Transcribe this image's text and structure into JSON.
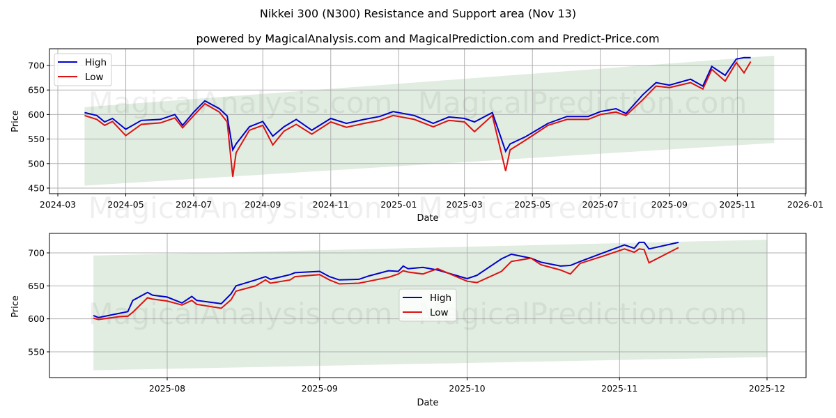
{
  "header": {
    "title": "Nikkei 300 (N300) Resistance and Support area (Nov 13)",
    "subtitle": "powered by MagicalAnalysis.com and MagicalPrediction.com and Predict-Price.com"
  },
  "watermark": {
    "left": "MagicalAnalysis.com",
    "right": "MagicalPrediction.com"
  },
  "colors": {
    "high": "#0000cc",
    "low": "#dd1111",
    "band": "#e1ede1",
    "grid": "#b0b0b0"
  },
  "legend": {
    "high": "High",
    "low": "Low"
  },
  "chart_data": [
    {
      "type": "line",
      "title": "Nikkei 300 (N300) Resistance and Support area (Nov 13)",
      "xlabel": "Date",
      "ylabel": "Price",
      "ylim": [
        440,
        735
      ],
      "yticks": [
        "450",
        "500",
        "550",
        "600",
        "650",
        "700"
      ],
      "xticks": [
        "2024-03",
        "2024-05",
        "2024-07",
        "2024-09",
        "2024-11",
        "2025-01",
        "2025-03",
        "2025-05",
        "2025-07",
        "2025-09",
        "2025-11",
        "2026-01"
      ],
      "grid": true,
      "legend_position": "upper left",
      "band": {
        "label": "Resistance and Support area",
        "start": "2024-03-25",
        "end": "2025-12-04",
        "upper_start": 615,
        "upper_end": 720,
        "lower_start": 455,
        "lower_end": 542
      },
      "x": [
        "2024-03-25",
        "2024-04-05",
        "2024-04-12",
        "2024-04-19",
        "2024-05-01",
        "2024-05-15",
        "2024-06-01",
        "2024-06-14",
        "2024-06-21",
        "2024-07-01",
        "2024-07-11",
        "2024-07-24",
        "2024-07-31",
        "2024-08-05",
        "2024-08-08",
        "2024-08-20",
        "2024-09-01",
        "2024-09-10",
        "2024-09-20",
        "2024-10-01",
        "2024-10-15",
        "2024-11-01",
        "2024-11-15",
        "2024-12-01",
        "2024-12-15",
        "2024-12-27",
        "2025-01-15",
        "2025-02-01",
        "2025-02-15",
        "2025-03-01",
        "2025-03-10",
        "2025-03-26",
        "2025-04-07",
        "2025-04-11",
        "2025-04-25",
        "2025-05-15",
        "2025-06-01",
        "2025-06-20",
        "2025-07-01",
        "2025-07-15",
        "2025-07-24",
        "2025-08-08",
        "2025-08-20",
        "2025-09-01",
        "2025-09-20",
        "2025-10-01",
        "2025-10-09",
        "2025-10-21",
        "2025-10-31",
        "2025-11-07",
        "2025-11-13"
      ],
      "series": [
        {
          "name": "High",
          "values": [
            604,
            598,
            585,
            592,
            570,
            588,
            590,
            600,
            578,
            605,
            628,
            612,
            597,
            528,
            540,
            575,
            586,
            556,
            575,
            590,
            568,
            592,
            582,
            590,
            596,
            606,
            598,
            582,
            595,
            592,
            585,
            604,
            525,
            540,
            555,
            582,
            596,
            596,
            606,
            612,
            602,
            640,
            665,
            660,
            672,
            658,
            698,
            680,
            713,
            716,
            716
          ]
        },
        {
          "name": "Low",
          "values": [
            598,
            590,
            578,
            586,
            557,
            580,
            583,
            593,
            573,
            598,
            622,
            605,
            585,
            473,
            522,
            568,
            578,
            538,
            566,
            580,
            560,
            585,
            574,
            582,
            588,
            598,
            590,
            575,
            588,
            585,
            565,
            598,
            485,
            528,
            548,
            578,
            590,
            590,
            600,
            605,
            598,
            630,
            658,
            655,
            665,
            652,
            692,
            668,
            706,
            685,
            708
          ]
        }
      ]
    },
    {
      "type": "line",
      "title": "",
      "xlabel": "Date",
      "ylabel": "Price",
      "ylim": [
        510,
        730
      ],
      "yticks": [
        "550",
        "600",
        "650",
        "700"
      ],
      "xticks": [
        "2025-08",
        "2025-09",
        "2025-10",
        "2025-11",
        "2025-12"
      ],
      "grid": true,
      "legend_position": "center",
      "band": {
        "label": "Resistance and Support area",
        "start": "2025-07-17",
        "end": "2025-12-01",
        "upper_start": 696,
        "upper_end": 720,
        "lower_start": 522,
        "lower_end": 542
      },
      "x": [
        "2025-07-17",
        "2025-07-18",
        "2025-07-22",
        "2025-07-24",
        "2025-07-25",
        "2025-07-28",
        "2025-07-29",
        "2025-08-01",
        "2025-08-04",
        "2025-08-06",
        "2025-08-07",
        "2025-08-12",
        "2025-08-14",
        "2025-08-15",
        "2025-08-19",
        "2025-08-21",
        "2025-08-22",
        "2025-08-26",
        "2025-08-27",
        "2025-09-01",
        "2025-09-03",
        "2025-09-05",
        "2025-09-09",
        "2025-09-11",
        "2025-09-15",
        "2025-09-17",
        "2025-09-18",
        "2025-09-19",
        "2025-09-22",
        "2025-09-25",
        "2025-10-01",
        "2025-10-03",
        "2025-10-08",
        "2025-10-10",
        "2025-10-14",
        "2025-10-16",
        "2025-10-20",
        "2025-10-22",
        "2025-10-24",
        "2025-10-29",
        "2025-11-02",
        "2025-11-04",
        "2025-11-05",
        "2025-11-06",
        "2025-11-07",
        "2025-11-13"
      ],
      "series": [
        {
          "name": "High",
          "values": [
            605,
            602,
            608,
            611,
            628,
            640,
            636,
            633,
            624,
            634,
            628,
            623,
            638,
            650,
            659,
            664,
            660,
            667,
            670,
            672,
            664,
            659,
            660,
            665,
            673,
            672,
            680,
            676,
            678,
            674,
            661,
            666,
            691,
            698,
            692,
            686,
            680,
            681,
            687,
            701,
            712,
            707,
            716,
            716,
            706,
            716
          ]
        },
        {
          "name": "Low",
          "values": [
            601,
            599,
            603,
            604,
            610,
            632,
            630,
            627,
            621,
            628,
            622,
            616,
            629,
            642,
            650,
            659,
            654,
            659,
            664,
            667,
            659,
            653,
            654,
            657,
            663,
            668,
            673,
            671,
            668,
            676,
            657,
            655,
            672,
            687,
            692,
            682,
            674,
            668,
            684,
            696,
            706,
            701,
            706,
            705,
            685,
            708
          ]
        }
      ]
    }
  ]
}
